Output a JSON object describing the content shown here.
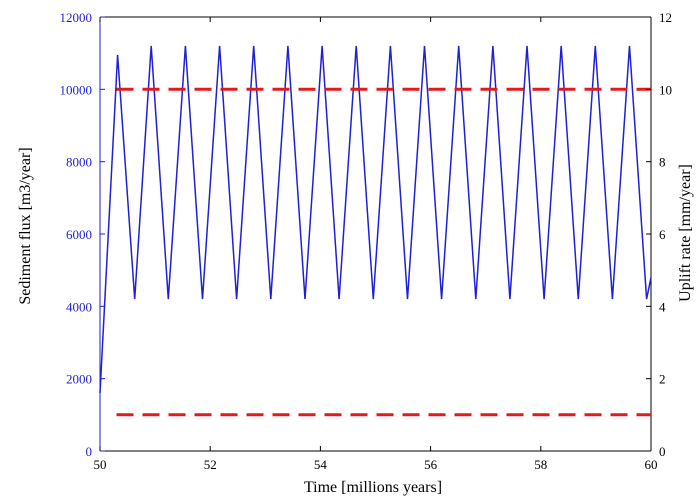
{
  "chart_data": {
    "type": "line",
    "xlabel": "Time [millions years]",
    "ylabel_left": "Sediment flux [m3/year]",
    "ylabel_right": "Uplift rate [mm/year]",
    "xlim": [
      50,
      60
    ],
    "ylim_left": [
      0,
      12000
    ],
    "ylim_right": [
      0,
      12
    ],
    "xticks": [
      50,
      52,
      54,
      56,
      58,
      60
    ],
    "yticks_left": [
      0,
      2000,
      4000,
      6000,
      8000,
      10000,
      12000
    ],
    "yticks_right": [
      0,
      2,
      4,
      6,
      8,
      10,
      12
    ],
    "grid": false,
    "series": [
      {
        "axis": "left",
        "style": "solid",
        "color": "#1f1fd6",
        "x": [
          50.0,
          50.32,
          50.63,
          50.93,
          51.24,
          51.55,
          51.86,
          52.17,
          52.48,
          52.79,
          53.1,
          53.41,
          53.72,
          54.03,
          54.34,
          54.65,
          54.96,
          55.27,
          55.58,
          55.89,
          56.2,
          56.51,
          56.82,
          57.13,
          57.44,
          57.75,
          58.06,
          58.37,
          58.68,
          58.99,
          59.3,
          59.61,
          59.92,
          60.0
        ],
        "y": [
          1600,
          10950,
          4200,
          11200,
          4200,
          11200,
          4200,
          11200,
          4200,
          11200,
          4200,
          11200,
          4200,
          11200,
          4200,
          11200,
          4200,
          11200,
          4200,
          11200,
          4200,
          11200,
          4200,
          11200,
          4200,
          11200,
          4200,
          11200,
          4200,
          11200,
          4200,
          11200,
          4200,
          4800
        ]
      },
      {
        "axis": "right",
        "style": "dashed",
        "color": "#e31a1c",
        "x": [
          50.3,
          60.0
        ],
        "y": [
          10,
          10
        ]
      },
      {
        "axis": "right",
        "style": "dashed",
        "color": "#e31a1c",
        "x": [
          50.3,
          60.0
        ],
        "y": [
          1,
          1
        ]
      }
    ]
  },
  "colors": {
    "left_axis": "#1f1fd6",
    "right_axis": "#000000",
    "flux_line": "#1f1fd6",
    "uplift_line": "#e31a1c"
  }
}
